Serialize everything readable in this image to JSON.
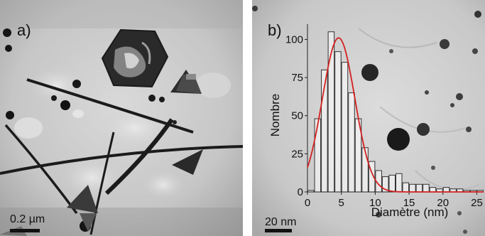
{
  "panel_a": {
    "label": "a)",
    "scale_bar_label": "0.2 µm"
  },
  "panel_b": {
    "label": "b)",
    "scale_bar_label": "20 nm"
  },
  "chart_data": {
    "type": "bar",
    "xlabel": "Diamètre (nm)",
    "ylabel": "Nombre",
    "xlim": [
      0,
      26
    ],
    "ylim": [
      0,
      110
    ],
    "x_ticks": [
      0,
      5,
      10,
      15,
      20,
      25
    ],
    "y_ticks": [
      0,
      25,
      50,
      75,
      100
    ],
    "bin_width": 1,
    "bin_starts": [
      0,
      1,
      2,
      3,
      4,
      5,
      6,
      7,
      8,
      9,
      10,
      11,
      12,
      13,
      14,
      15,
      16,
      17,
      18,
      19,
      20,
      21,
      22,
      23,
      24,
      25
    ],
    "values": [
      1,
      48,
      80,
      105,
      92,
      85,
      65,
      48,
      29,
      20,
      14,
      10,
      11,
      12,
      6,
      5,
      5,
      5,
      3,
      2,
      3,
      2,
      2,
      1,
      1,
      1
    ],
    "fit_curve": {
      "type": "gaussian",
      "amplitude": 101,
      "center": 4.6,
      "sigma": 2.4,
      "color": "#d42020"
    },
    "bar_color": "#ffffff",
    "bar_edge_color": "#333333"
  }
}
